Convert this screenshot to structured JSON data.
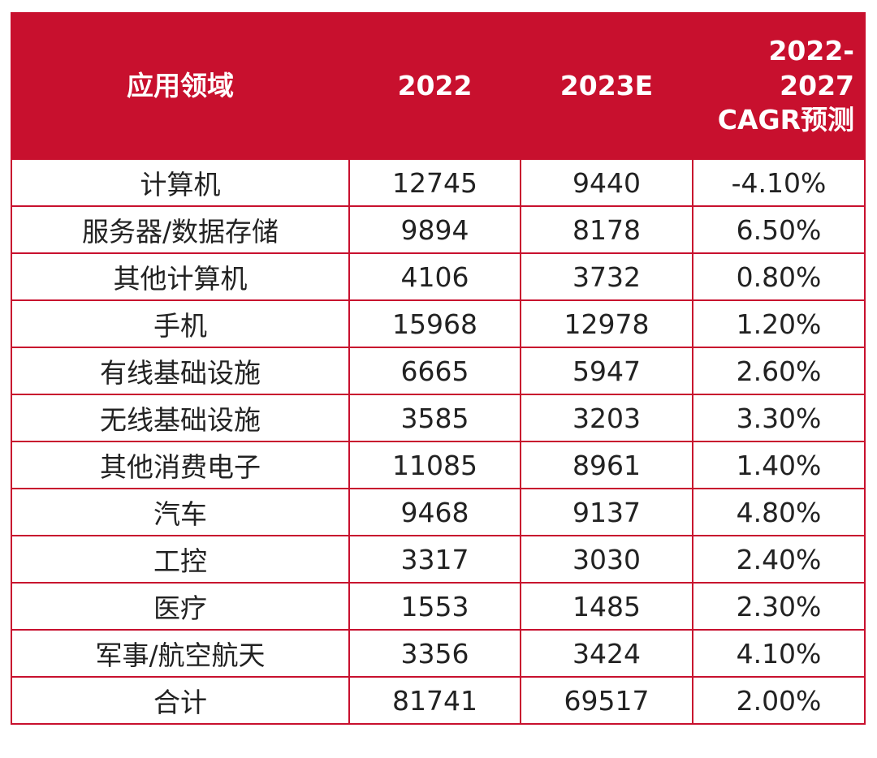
{
  "chart_data": {
    "type": "table",
    "columns": [
      "应用领域",
      "2022",
      "2023E",
      "2022-2027 CAGR预测"
    ],
    "header_lines": {
      "col0": "应用领域",
      "col1": "2022",
      "col2": "2023E",
      "col3": [
        "2022-",
        "2027",
        "CAGR预测"
      ]
    },
    "rows": [
      {
        "field": "计算机",
        "y2022": "12745",
        "y2023e": "9440",
        "cagr": "-4.10%"
      },
      {
        "field": "服务器/数据存储",
        "y2022": "9894",
        "y2023e": "8178",
        "cagr": "6.50%"
      },
      {
        "field": "其他计算机",
        "y2022": "4106",
        "y2023e": "3732",
        "cagr": "0.80%"
      },
      {
        "field": "手机",
        "y2022": "15968",
        "y2023e": "12978",
        "cagr": "1.20%"
      },
      {
        "field": "有线基础设施",
        "y2022": "6665",
        "y2023e": "5947",
        "cagr": "2.60%"
      },
      {
        "field": "无线基础设施",
        "y2022": "3585",
        "y2023e": "3203",
        "cagr": "3.30%"
      },
      {
        "field": "其他消费电子",
        "y2022": "11085",
        "y2023e": "8961",
        "cagr": "1.40%"
      },
      {
        "field": "汽车",
        "y2022": "9468",
        "y2023e": "9137",
        "cagr": "4.80%"
      },
      {
        "field": "工控",
        "y2022": "3317",
        "y2023e": "3030",
        "cagr": "2.40%"
      },
      {
        "field": "医疗",
        "y2022": "1553",
        "y2023e": "1485",
        "cagr": "2.30%"
      },
      {
        "field": "军事/航空航天",
        "y2022": "3356",
        "y2023e": "3424",
        "cagr": "4.10%"
      },
      {
        "field": "合计",
        "y2022": "81741",
        "y2023e": "69517",
        "cagr": "2.00%"
      }
    ],
    "colors": {
      "header_bg": "#c8102e",
      "header_text": "#ffffff",
      "border": "#c8102e",
      "cell_text": "#222222"
    }
  }
}
